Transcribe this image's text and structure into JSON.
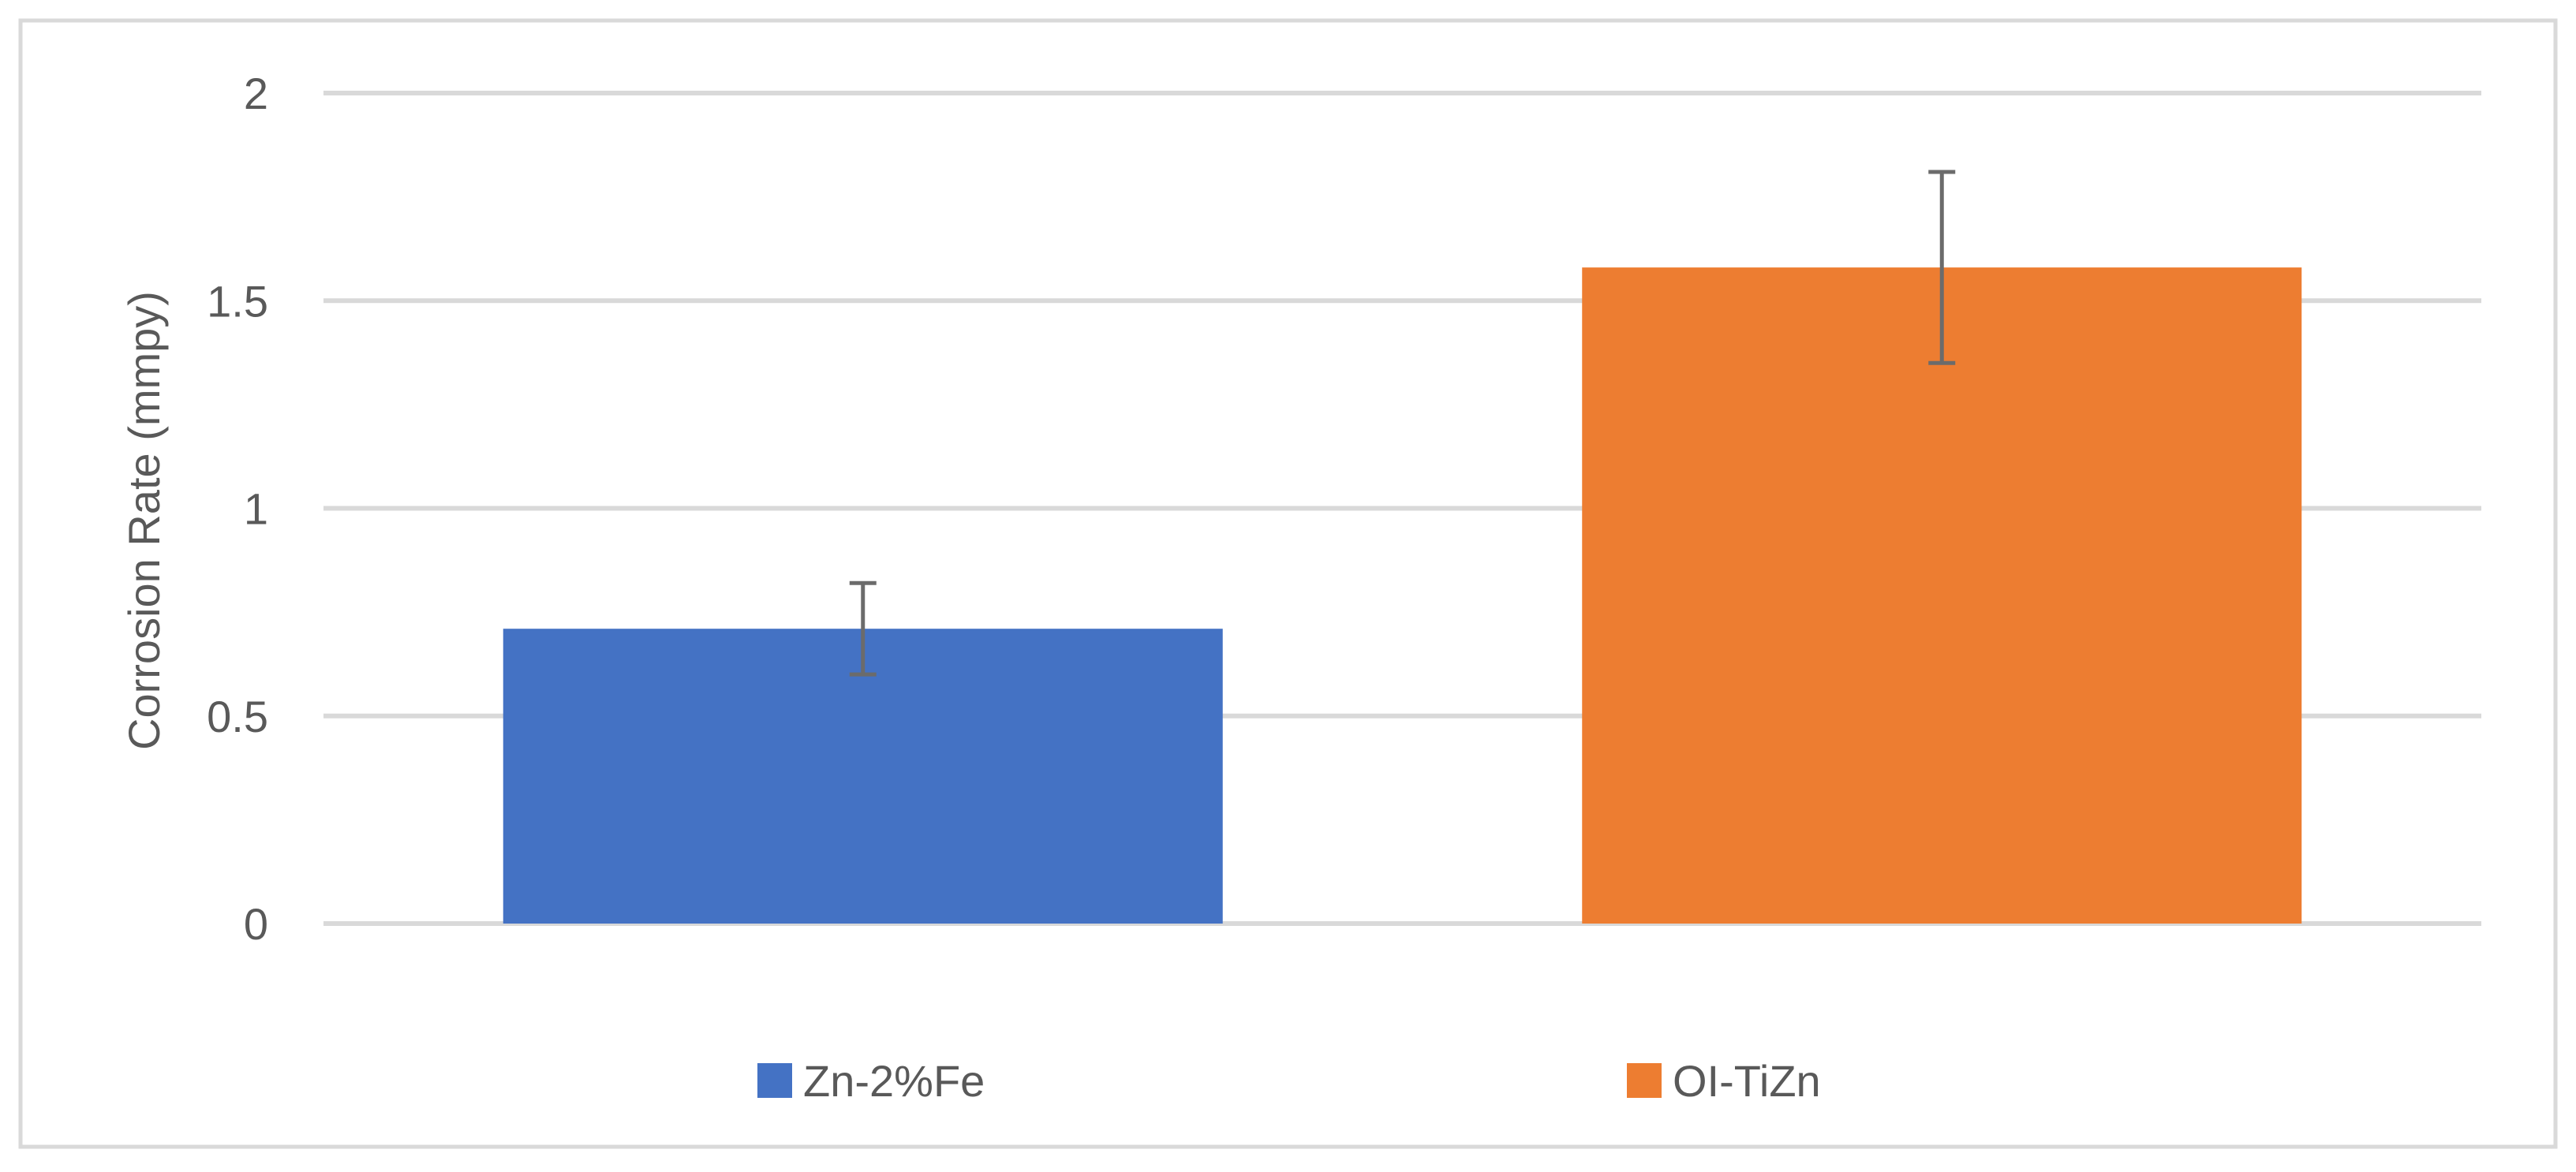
{
  "chart_data": {
    "type": "bar",
    "title": "",
    "xlabel": "",
    "ylabel": "Corrosion Rate (mmpy)",
    "ylim": [
      0,
      2
    ],
    "yticks": [
      {
        "value": 0,
        "label": "0"
      },
      {
        "value": 0.5,
        "label": "0.5"
      },
      {
        "value": 1,
        "label": "1"
      },
      {
        "value": 1.5,
        "label": "1.5"
      },
      {
        "value": 2,
        "label": "2"
      }
    ],
    "grid": true,
    "legend_position": "bottom",
    "series": [
      {
        "name": "Zn-2%Fe",
        "value": 0.71,
        "error_low": 0.6,
        "error_high": 0.82,
        "color": "#4472C4"
      },
      {
        "name": "OI-TiZn",
        "value": 1.58,
        "error_low": 1.35,
        "error_high": 1.81,
        "color": "#ED7D31"
      }
    ],
    "colors": {
      "gridline": "#d9d9d9",
      "error_bar": "#6b6b6b",
      "text": "#595959",
      "frame": "#d9d9d9"
    }
  }
}
